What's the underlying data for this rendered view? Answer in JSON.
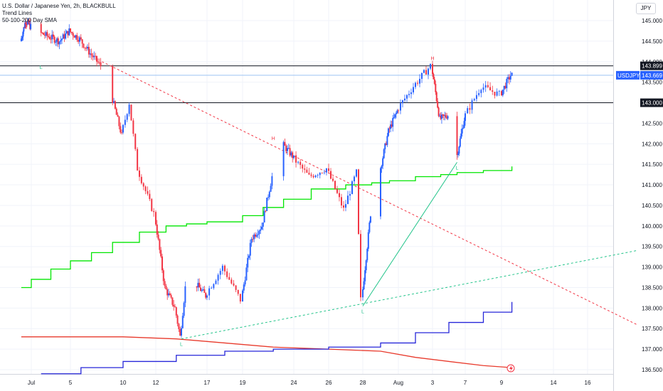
{
  "legend": {
    "title": "U.S. Dollar / Japanese Yen, 2h, BLACKBULL",
    "line2": "Trend Lines",
    "line3": "50-100-200 Day SMA"
  },
  "currency_label": "JPY",
  "colors": {
    "up": "#2962ff",
    "down": "#f23645",
    "sma50": "#00e600",
    "sma100": "#2626d9",
    "sma200": "#e83a2c",
    "trend_red": "#f23645",
    "trend_green": "#22c48a",
    "hline": "#131722",
    "price_line": "#9cc3f3",
    "grid": "#f0f3fa",
    "axis_text": "#131722"
  },
  "chart_data": {
    "type": "line",
    "symbol": "USDJPY",
    "interval": "2h",
    "x_ticks": [
      {
        "label": "Jul",
        "date": "2023-07-01"
      },
      {
        "label": "5",
        "date": "2023-07-05"
      },
      {
        "label": "10",
        "date": "2023-07-10"
      },
      {
        "label": "12",
        "date": "2023-07-12"
      },
      {
        "label": "17",
        "date": "2023-07-17"
      },
      {
        "label": "19",
        "date": "2023-07-19"
      },
      {
        "label": "24",
        "date": "2023-07-24"
      },
      {
        "label": "26",
        "date": "2023-07-26"
      },
      {
        "label": "28",
        "date": "2023-07-28"
      },
      {
        "label": "Aug",
        "date": "2023-08-01"
      },
      {
        "label": "3",
        "date": "2023-08-03"
      },
      {
        "label": "7",
        "date": "2023-08-07"
      },
      {
        "label": "9",
        "date": "2023-08-09"
      },
      {
        "label": "14",
        "date": "2023-08-14"
      },
      {
        "label": "16",
        "date": "2023-08-16"
      }
    ],
    "y_ticks": [
      "145.000",
      "144.500",
      "144.000",
      "143.500",
      "143.000",
      "142.500",
      "142.000",
      "141.500",
      "141.000",
      "140.500",
      "140.000",
      "139.500",
      "139.000",
      "138.500",
      "138.000",
      "137.500",
      "137.000",
      "136.500"
    ],
    "ylim": [
      136.3,
      145.2
    ],
    "price_path": [
      [
        "2023-06-29",
        144.5
      ],
      [
        "2023-06-30",
        145.0
      ],
      [
        "2023-07-02",
        144.7
      ],
      [
        "2023-07-04",
        144.5
      ],
      [
        "2023-07-05",
        144.75
      ],
      [
        "2023-07-06",
        144.55
      ],
      [
        "2023-07-07",
        144.2
      ],
      [
        "2023-07-08",
        143.9
      ],
      [
        "2023-07-09",
        143.2
      ],
      [
        "2023-07-10",
        142.2
      ],
      [
        "2023-07-10T12",
        143.0
      ],
      [
        "2023-07-11",
        141.4
      ],
      [
        "2023-07-12",
        140.3
      ],
      [
        "2023-07-13",
        138.5
      ],
      [
        "2023-07-14",
        138.0
      ],
      [
        "2023-07-14T12",
        137.3
      ],
      [
        "2023-07-15",
        138.5
      ],
      [
        "2023-07-16",
        138.6
      ],
      [
        "2023-07-17",
        138.3
      ],
      [
        "2023-07-18",
        139.0
      ],
      [
        "2023-07-19",
        138.2
      ],
      [
        "2023-07-20",
        139.7
      ],
      [
        "2023-07-21",
        140.0
      ],
      [
        "2023-07-22",
        141.2
      ],
      [
        "2023-07-23",
        142.0
      ],
      [
        "2023-07-24",
        141.7
      ],
      [
        "2023-07-25",
        141.2
      ],
      [
        "2023-07-26",
        141.4
      ],
      [
        "2023-07-27",
        140.4
      ],
      [
        "2023-07-27T18",
        141.3
      ],
      [
        "2023-07-28",
        138.2
      ],
      [
        "2023-07-29",
        140.3
      ],
      [
        "2023-07-31",
        142.3
      ],
      [
        "2023-08-01",
        142.8
      ],
      [
        "2023-08-02",
        143.4
      ],
      [
        "2023-08-03",
        143.899
      ],
      [
        "2023-08-04",
        142.6
      ],
      [
        "2023-08-05",
        142.7
      ],
      [
        "2023-08-06",
        141.6
      ],
      [
        "2023-08-07",
        142.6
      ],
      [
        "2023-08-08",
        143.4
      ],
      [
        "2023-08-09",
        143.2
      ],
      [
        "2023-08-10",
        143.669
      ]
    ],
    "sma50_levels": [
      [
        "2023-06-29",
        138.5
      ],
      [
        "2023-07-01",
        138.7
      ],
      [
        "2023-07-03",
        138.95
      ],
      [
        "2023-07-05",
        139.15
      ],
      [
        "2023-07-07",
        139.35
      ],
      [
        "2023-07-09",
        139.6
      ],
      [
        "2023-07-11",
        139.85
      ],
      [
        "2023-07-13",
        140.0
      ],
      [
        "2023-07-15",
        140.05
      ],
      [
        "2023-07-17",
        140.1
      ],
      [
        "2023-07-19",
        140.25
      ],
      [
        "2023-07-21",
        140.45
      ],
      [
        "2023-07-23",
        140.65
      ],
      [
        "2023-07-25",
        140.9
      ],
      [
        "2023-07-27",
        141.0
      ],
      [
        "2023-07-29",
        141.05
      ],
      [
        "2023-07-31",
        141.1
      ],
      [
        "2023-08-02",
        141.2
      ],
      [
        "2023-08-04",
        141.25
      ],
      [
        "2023-08-06",
        141.3
      ],
      [
        "2023-08-08",
        141.35
      ],
      [
        "2023-08-10",
        141.45
      ]
    ],
    "sma100_levels": [
      [
        "2023-07-02",
        136.4
      ],
      [
        "2023-07-06",
        136.55
      ],
      [
        "2023-07-10",
        136.7
      ],
      [
        "2023-07-14",
        136.85
      ],
      [
        "2023-07-18",
        136.95
      ],
      [
        "2023-07-22",
        137.0
      ],
      [
        "2023-07-26",
        137.05
      ],
      [
        "2023-07-30",
        137.15
      ],
      [
        "2023-08-02",
        137.4
      ],
      [
        "2023-08-05",
        137.65
      ],
      [
        "2023-08-08",
        137.9
      ],
      [
        "2023-08-10",
        138.15
      ]
    ],
    "sma200_levels": [
      [
        "2023-06-29",
        137.3
      ],
      [
        "2023-07-10",
        137.3
      ],
      [
        "2023-07-14",
        137.25
      ],
      [
        "2023-07-18",
        137.15
      ],
      [
        "2023-07-22",
        137.05
      ],
      [
        "2023-07-26",
        137.0
      ],
      [
        "2023-07-30",
        136.95
      ],
      [
        "2023-08-02",
        136.8
      ],
      [
        "2023-08-05",
        136.7
      ],
      [
        "2023-08-08",
        136.6
      ],
      [
        "2023-08-10",
        136.55
      ]
    ],
    "horizontal_lines": [
      143.899,
      143.0
    ],
    "current_price": 143.669,
    "price_labels": [
      {
        "value": 143.899,
        "text": "143.899",
        "style": "dark"
      },
      {
        "value": 143.669,
        "text": "143.669",
        "style": "blue",
        "tag": "USDJPY"
      },
      {
        "value": 143.0,
        "text": "143.000",
        "style": "dark"
      }
    ],
    "trendlines": [
      {
        "color": "red",
        "dashed": true,
        "from": [
          "2023-07-08",
          144.0
        ],
        "to": [
          "2023-08-18",
          137.6
        ]
      },
      {
        "color": "green",
        "dashed": true,
        "from": [
          "2023-07-14T12",
          137.25
        ],
        "to": [
          "2023-08-18",
          139.4
        ]
      },
      {
        "color": "green",
        "dashed": false,
        "from": [
          "2023-07-28",
          138.05
        ],
        "to": [
          "2023-08-06",
          141.55
        ]
      }
    ],
    "pivot_markers": [
      {
        "text": "L",
        "date": "2023-07-02",
        "value": 144.0,
        "color": "green",
        "pos": "below"
      },
      {
        "text": "H",
        "date": "2023-07-22",
        "value": 141.95,
        "color": "red",
        "pos": "above"
      },
      {
        "text": "L",
        "date": "2023-07-14T12",
        "value": 137.25,
        "color": "green",
        "pos": "below"
      },
      {
        "text": "L",
        "date": "2023-07-28",
        "value": 138.05,
        "color": "green",
        "pos": "below"
      },
      {
        "text": "H",
        "date": "2023-08-03",
        "value": 143.9,
        "color": "red",
        "pos": "above"
      },
      {
        "text": "L",
        "date": "2023-08-06",
        "value": 141.55,
        "color": "green",
        "pos": "below"
      }
    ]
  }
}
